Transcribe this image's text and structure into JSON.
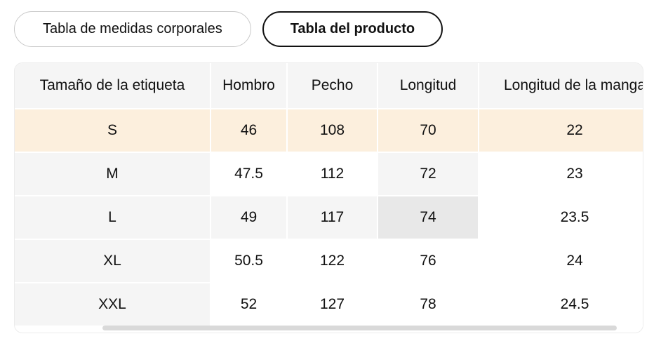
{
  "tabs": [
    {
      "id": "body-measurements",
      "label": "Tabla de medidas corporales",
      "selected": false
    },
    {
      "id": "product-measurements",
      "label": "Tabla del producto",
      "selected": true
    }
  ],
  "size_table": {
    "columns": [
      "Tamaño de la etiqueta",
      "Hombro",
      "Pecho",
      "Longitud",
      "Longitud de la manga"
    ],
    "rows": [
      {
        "size": "S",
        "values": [
          "46",
          "108",
          "70",
          "22"
        ]
      },
      {
        "size": "M",
        "values": [
          "47.5",
          "112",
          "72",
          "23"
        ]
      },
      {
        "size": "L",
        "values": [
          "49",
          "117",
          "74",
          "23.5"
        ]
      },
      {
        "size": "XL",
        "values": [
          "50.5",
          "122",
          "76",
          "24"
        ]
      },
      {
        "size": "XXL",
        "values": [
          "52",
          "127",
          "78",
          "24.5"
        ]
      }
    ],
    "selected_row_index": 0,
    "hover_cell": {
      "row_index": 2,
      "col_index": 3
    }
  },
  "colors": {
    "header_bg": "#f5f5f5",
    "label_col_bg": "#f5f5f5",
    "selected_row_bg": "#fcefdd",
    "highlight_bg": "#f5f5f5",
    "hover_cell_bg": "#e8e8e8",
    "scrollbar_thumb": "#d9d9d9",
    "tab_border": "#c9c9c9",
    "tab_selected_border": "#121212",
    "text": "#111111"
  }
}
